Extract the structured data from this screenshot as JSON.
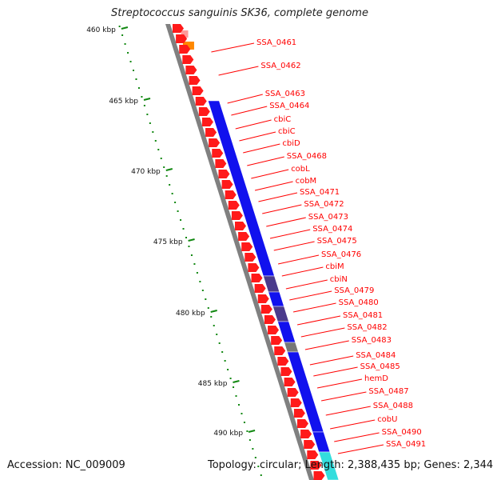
{
  "title": "Streptococcus sanguinis SK36, complete genome",
  "footer": {
    "accession_label": "Accession:",
    "accession": "NC_009009",
    "topology_label": "Topology:",
    "topology": "circular",
    "length_label": "Length:",
    "length": "2,388,435 bp",
    "genes_label": "Genes:",
    "genes": "2,344"
  },
  "scale_unit": "kbp",
  "scale_ticks": [
    460,
    465,
    470,
    475,
    480,
    485,
    490
  ],
  "colors": {
    "forward_gene": "#ff1a1a",
    "backbone": "#808080",
    "cog_blue": "#1111ee",
    "cog_purple": "#4a3a8c",
    "cog_gray": "#777777",
    "cog_cyan": "#33dddd",
    "cog_orange": "#ff8800",
    "cog_pink": "#ff9999",
    "label_line": "#ff0000",
    "tick_color": "#118811"
  },
  "gene_labels": [
    "SSA_0461",
    "SSA_0462",
    "SSA_0463",
    "SSA_0464",
    "cbiC",
    "cbiC",
    "cbiD",
    "SSA_0468",
    "cobL",
    "cobM",
    "SSA_0471",
    "SSA_0472",
    "SSA_0473",
    "SSA_0474",
    "SSA_0475",
    "SSA_0476",
    "cbiM",
    "cbiN",
    "SSA_0479",
    "SSA_0480",
    "SSA_0481",
    "SSA_0482",
    "SSA_0483",
    "SSA_0484",
    "SSA_0485",
    "hemD",
    "SSA_0487",
    "SSA_0488",
    "cobU",
    "SSA_0490",
    "SSA_0491"
  ]
}
